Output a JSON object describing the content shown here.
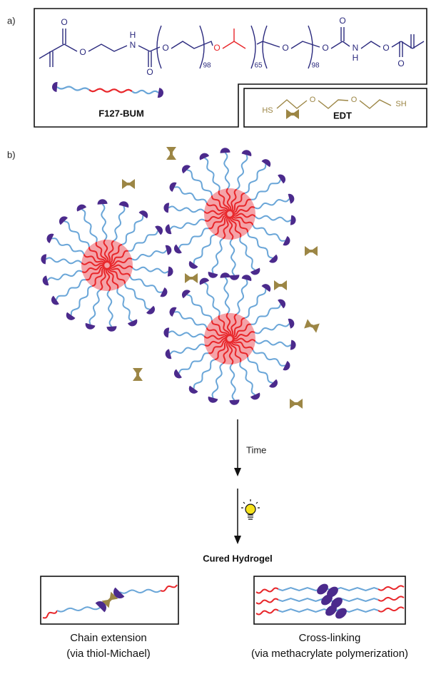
{
  "panel_a": {
    "label": "a)",
    "structure": {
      "atoms": [
        "O",
        "O",
        "N",
        "H",
        "O",
        "O",
        "O",
        "O",
        "O",
        "O",
        "N",
        "H",
        "O",
        "O"
      ],
      "subscripts": [
        "98",
        "65",
        "98"
      ]
    },
    "f127_label": "F127-BUM",
    "edt_structure": {
      "atoms": [
        "HS",
        "O",
        "O",
        "SH"
      ]
    },
    "edt_label": "EDT"
  },
  "panel_b": {
    "label": "b)",
    "step1": "Time",
    "result": "Cured Hydrogel",
    "insets": [
      {
        "title": "Chain extension",
        "subtitle": "(via thiol-Michael)"
      },
      {
        "title": "Cross-linking",
        "subtitle": "(via methacrylate polymerization)"
      }
    ]
  }
}
